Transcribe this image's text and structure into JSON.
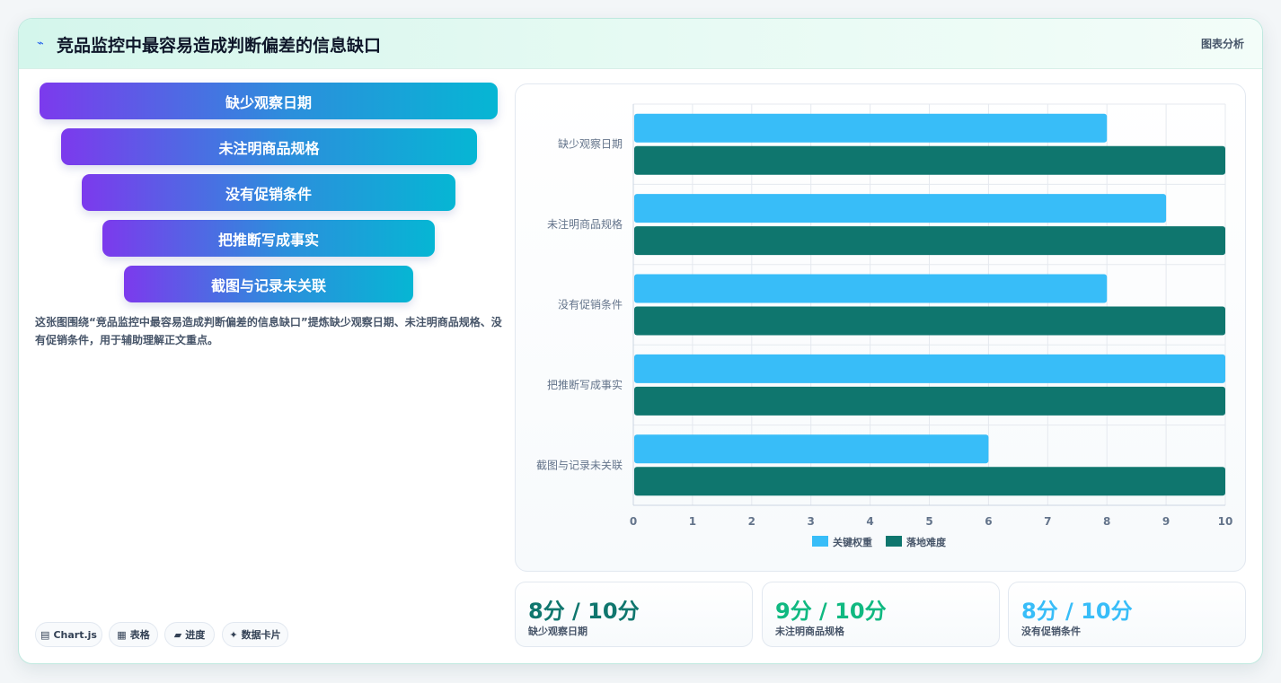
{
  "header": {
    "title": "竞品监控中最容易造成判断偏差的信息缺口",
    "tag": "图表分析",
    "icon": "chart-icon"
  },
  "funnel": {
    "items": [
      "缺少观察日期",
      "未注明商品规格",
      "没有促销条件",
      "把推断写成事实",
      "截图与记录未关联"
    ]
  },
  "description": "这张图围绕“竞品监控中最容易造成判断偏差的信息缺口”提炼缺少观察日期、未注明商品规格、没有促销条件，用于辅助理解正文重点。",
  "pills": [
    {
      "icon": "▤",
      "label": "Chart.js"
    },
    {
      "icon": "▦",
      "label": "表格"
    },
    {
      "icon": "▰",
      "label": "进度"
    },
    {
      "icon": "✦",
      "label": "数据卡片"
    }
  ],
  "stats": [
    {
      "value": "8分 / 10分",
      "label": "缺少观察日期",
      "color": "#0f766e"
    },
    {
      "value": "9分 / 10分",
      "label": "未注明商品规格",
      "color": "#10b981"
    },
    {
      "value": "8分 / 10分",
      "label": "没有促销条件",
      "color": "#38bdf8"
    }
  ],
  "chart_data": {
    "type": "bar",
    "orientation": "horizontal",
    "categories": [
      "缺少观察日期",
      "未注明商品规格",
      "没有促销条件",
      "把推断写成事实",
      "截图与记录未关联"
    ],
    "series": [
      {
        "name": "关键权重",
        "values": [
          8,
          9,
          8,
          10,
          6
        ],
        "color": "#38bdf8"
      },
      {
        "name": "落地难度",
        "values": [
          10,
          10,
          10,
          10,
          10
        ],
        "color": "#0f766e"
      }
    ],
    "xlim": [
      0,
      10
    ],
    "xticks": [
      0,
      1,
      2,
      3,
      4,
      5,
      6,
      7,
      8,
      9,
      10
    ],
    "grid": true,
    "legend": "bottom"
  }
}
